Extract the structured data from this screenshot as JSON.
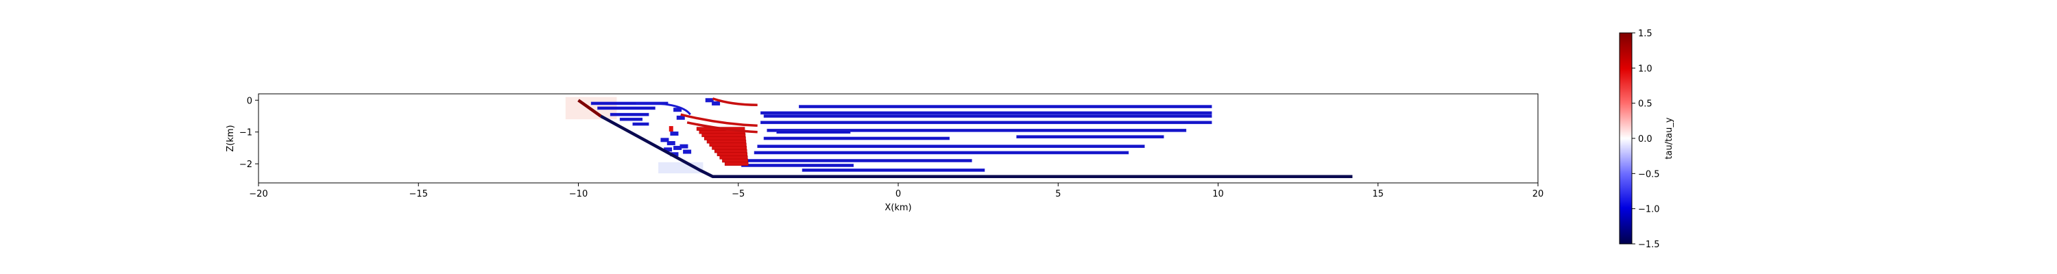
{
  "chart_data": [
    {
      "type": "heatmap",
      "title": "",
      "xlabel": "X(km)",
      "ylabel": "Z(km)",
      "xlim": [
        -20,
        20
      ],
      "ylim": [
        -2.6,
        0.2
      ],
      "xticks": [
        -20,
        -15,
        -10,
        -5,
        0,
        5,
        10,
        15,
        20
      ],
      "yticks": [
        0,
        -1,
        -2
      ],
      "grid": false,
      "colormap": "seismic",
      "color_low": "#00004c",
      "color_mid": "#ffffff",
      "color_high": "#800000",
      "fault_lines": [
        {
          "name": "",
          "color": "#7f0000",
          "x": [
            -10.0,
            -9.3
          ],
          "z": [
            0.0,
            -0.5
          ]
        },
        {
          "name": "",
          "color": "#0a0a50",
          "x": [
            -9.3,
            -6.2,
            -5.8,
            14.2
          ],
          "z": [
            -0.5,
            -2.2,
            -2.4,
            -2.4
          ]
        }
      ],
      "red_arcs": [
        {
          "x": [
            -6.8,
            -5.6,
            -4.4
          ],
          "z": [
            -0.45,
            -0.75,
            -0.8
          ]
        },
        {
          "x": [
            -6.6,
            -5.4,
            -4.4
          ],
          "z": [
            -0.7,
            -0.95,
            -1.0
          ]
        },
        {
          "x": [
            -5.8,
            -5.2,
            -4.4
          ],
          "z": [
            0.05,
            -0.15,
            -0.15
          ]
        }
      ],
      "blue_segments": [
        {
          "x": [
            -9.6,
            -7.2
          ],
          "z": -0.1
        },
        {
          "x": [
            -9.4,
            -7.6
          ],
          "z": -0.25
        },
        {
          "x": [
            -9.0,
            -7.8
          ],
          "z": -0.45
        },
        {
          "x": [
            -8.7,
            -8.0
          ],
          "z": -0.6
        },
        {
          "x": [
            -8.3,
            -7.8
          ],
          "z": -0.75
        },
        {
          "x": [
            -4.3,
            9.8
          ],
          "z": -0.4
        },
        {
          "x": [
            -3.1,
            9.8
          ],
          "z": -0.2
        },
        {
          "x": [
            -4.3,
            9.8
          ],
          "z": -0.7
        },
        {
          "x": [
            -4.2,
            9.8
          ],
          "z": -0.5
        },
        {
          "x": [
            -4.1,
            9.0
          ],
          "z": -0.95
        },
        {
          "x": [
            -3.8,
            -1.5
          ],
          "z": -1.0
        },
        {
          "x": [
            -4.2,
            1.6
          ],
          "z": -1.2
        },
        {
          "x": [
            3.7,
            8.3
          ],
          "z": -1.15
        },
        {
          "x": [
            -4.4,
            7.7
          ],
          "z": -1.45
        },
        {
          "x": [
            -4.5,
            7.2
          ],
          "z": -1.65
        },
        {
          "x": [
            -4.7,
            2.3
          ],
          "z": -1.9
        },
        {
          "x": [
            -4.9,
            -1.4
          ],
          "z": -2.05
        },
        {
          "x": [
            -3.0,
            2.7
          ],
          "z": -2.2
        }
      ],
      "colorbar": {
        "label": "tau/tau_y",
        "min": -1.5,
        "max": 1.5,
        "ticks": [
          1.5,
          1.0,
          0.5,
          0.0,
          -0.5,
          -1.0,
          -1.5
        ],
        "tick_labels": [
          "1.5",
          "1.0",
          "0.5",
          "0.0",
          "−0.5",
          "−1.0",
          "−1.5"
        ]
      }
    }
  ]
}
